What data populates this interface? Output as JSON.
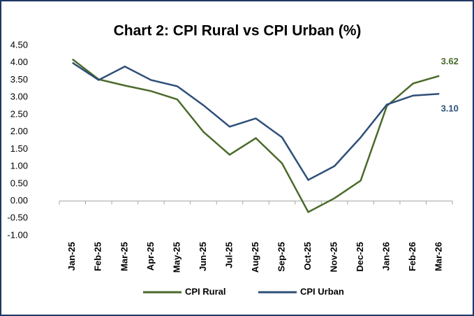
{
  "chart_data": {
    "type": "line",
    "title": "Chart 2: CPI Rural vs CPI Urban (%)",
    "categories": [
      "Jan-25",
      "Feb-25",
      "Mar-25",
      "Apr-25",
      "May-25",
      "Jun-25",
      "Jul-25",
      "Aug-25",
      "Sep-25",
      "Oct-25",
      "Nov-25",
      "Dec-25",
      "Jan-26",
      "Feb-26",
      "Mar-26"
    ],
    "series": [
      {
        "name": "CPI Rural",
        "color": "#4a6a2a",
        "values": [
          4.1,
          3.52,
          3.34,
          3.18,
          2.94,
          2.0,
          1.34,
          1.82,
          1.09,
          -0.32,
          0.08,
          0.59,
          2.75,
          3.4,
          3.62
        ],
        "value_labels": [
          null,
          null,
          null,
          null,
          null,
          null,
          null,
          null,
          null,
          null,
          null,
          null,
          null,
          null,
          "3.62"
        ]
      },
      {
        "name": "CPI Urban",
        "color": "#2e4f78",
        "values": [
          4.0,
          3.5,
          3.89,
          3.5,
          3.32,
          2.77,
          2.15,
          2.39,
          1.84,
          0.61,
          1.01,
          1.84,
          2.79,
          3.05,
          3.1
        ],
        "value_labels": [
          null,
          null,
          null,
          null,
          null,
          null,
          null,
          null,
          null,
          null,
          null,
          null,
          null,
          null,
          "3.10"
        ]
      }
    ],
    "ylim": [
      -1,
      4.5
    ],
    "yticks": [
      {
        "value": -1,
        "label": "-1.00"
      },
      {
        "value": -0.5,
        "label": "-0.50"
      },
      {
        "value": 0,
        "label": "0.00"
      },
      {
        "value": 0.5,
        "label": "0.50"
      },
      {
        "value": 1,
        "label": "1.00"
      },
      {
        "value": 1.5,
        "label": "1.50"
      },
      {
        "value": 2,
        "label": "2.00"
      },
      {
        "value": 2.5,
        "label": "2.50"
      },
      {
        "value": 3,
        "label": "3.00"
      },
      {
        "value": 3.5,
        "label": "3.50"
      },
      {
        "value": 4,
        "label": "4.00"
      },
      {
        "value": 4.5,
        "label": "4.50"
      }
    ],
    "grid": false,
    "legend": "bottom"
  }
}
